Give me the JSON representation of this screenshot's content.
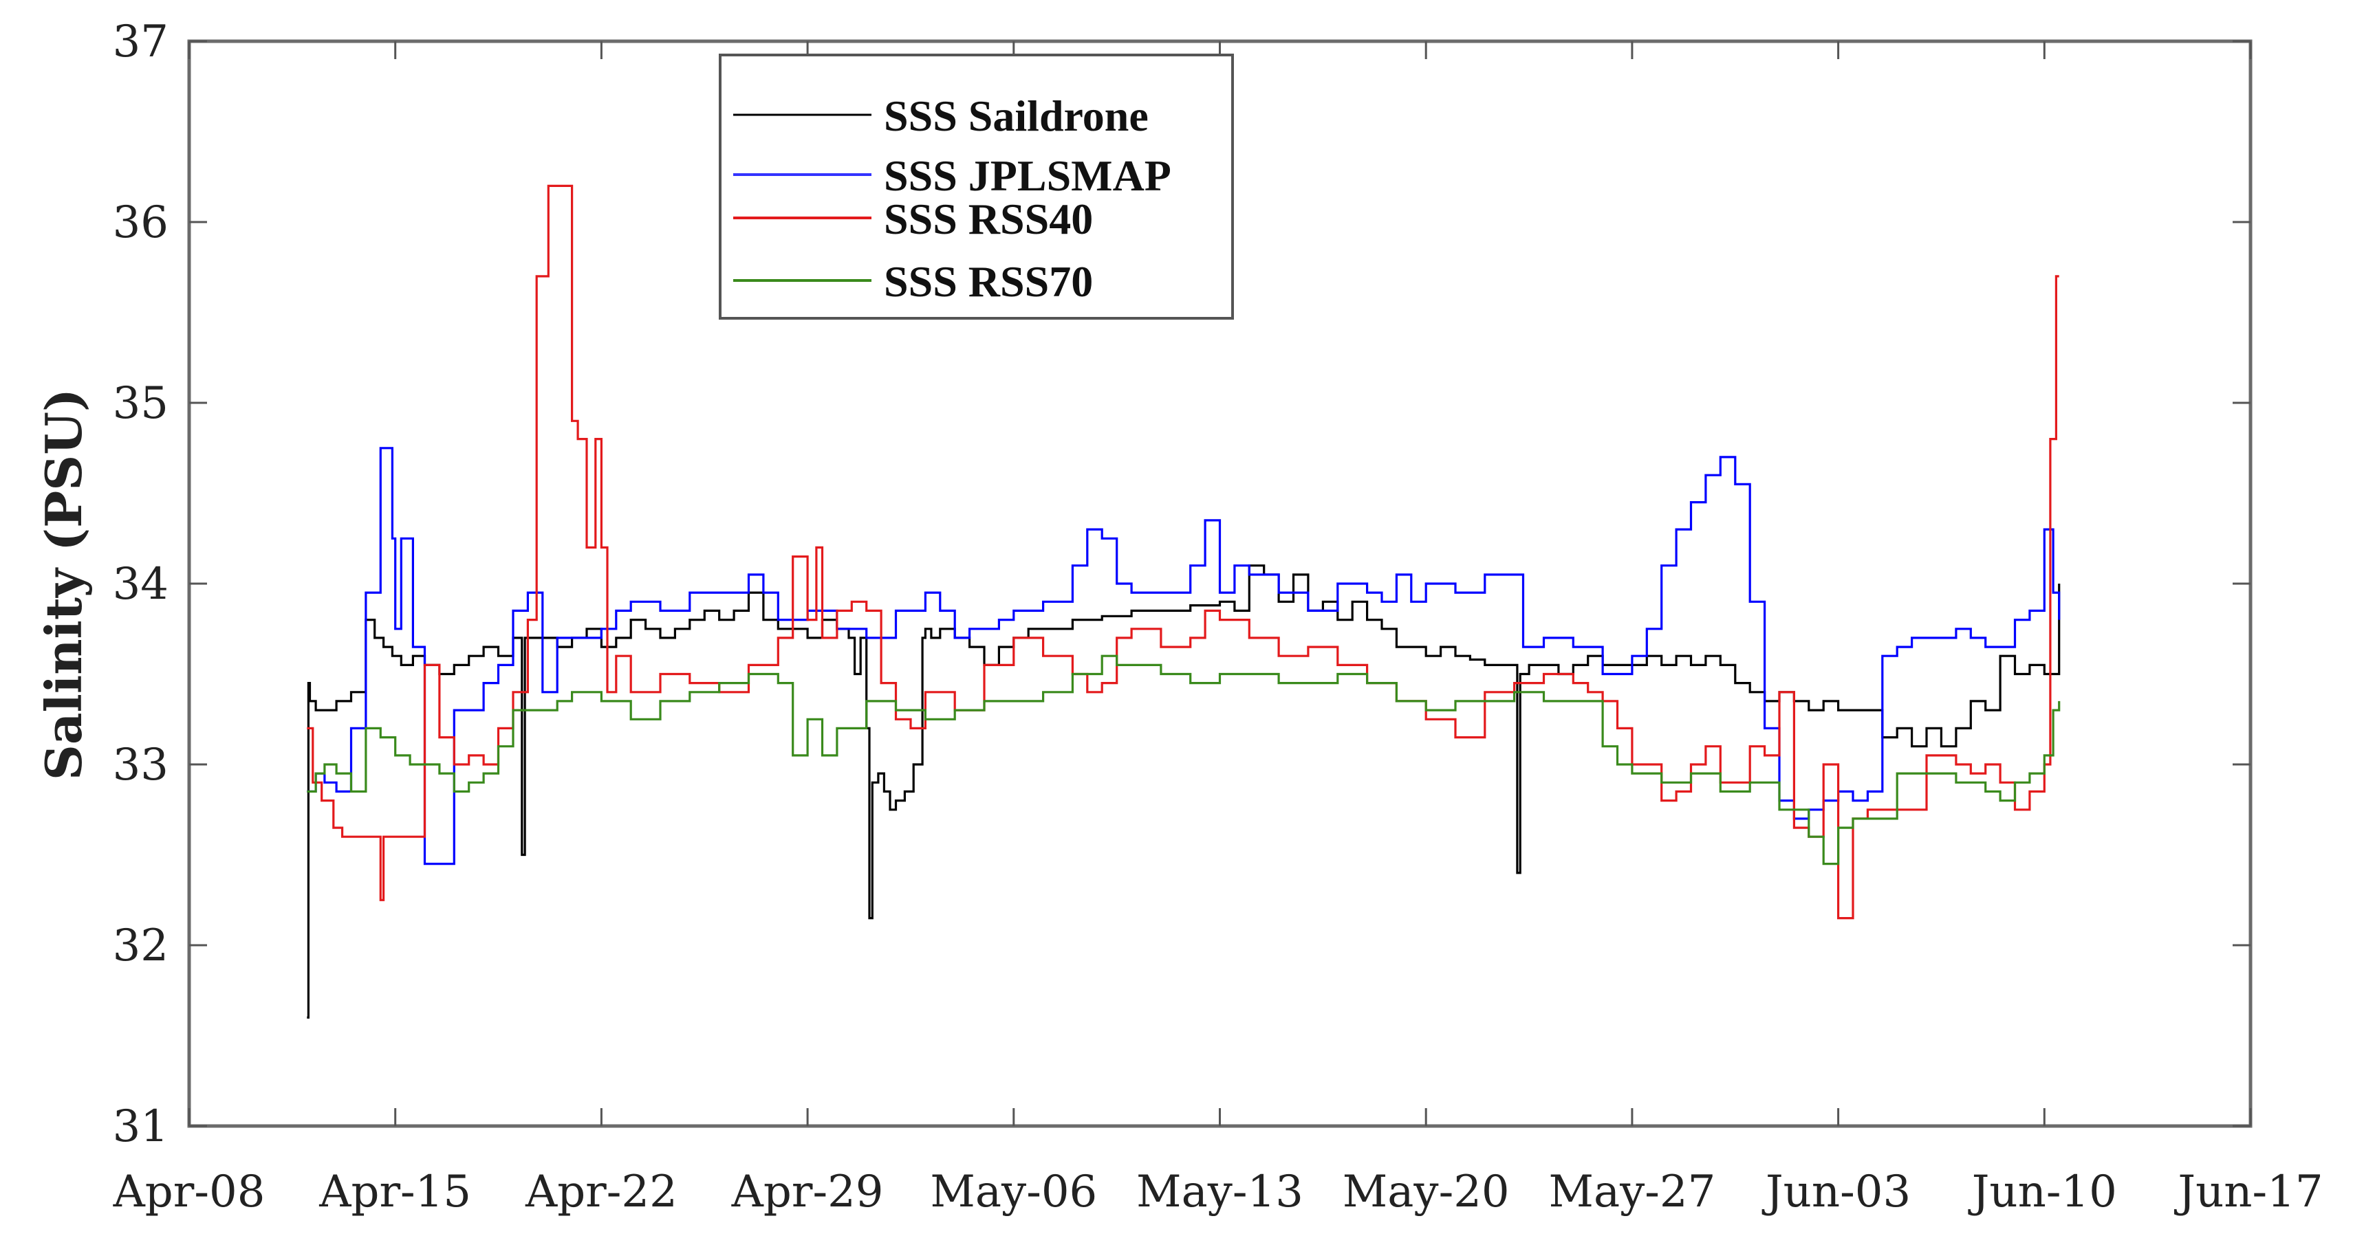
{
  "chart_data": {
    "type": "line",
    "title": "",
    "xlabel": "",
    "ylabel": "Salinity (PSU)",
    "ylim": [
      31,
      37
    ],
    "yticks": [
      31,
      32,
      33,
      34,
      35,
      36,
      37
    ],
    "xlim_days": [
      0,
      70
    ],
    "x_ref_date": "Apr-08",
    "xtick_labels": [
      "Apr-08",
      "Apr-15",
      "Apr-22",
      "Apr-29",
      "May-06",
      "May-13",
      "May-20",
      "May-27",
      "Jun-03",
      "Jun-10",
      "Jun-17"
    ],
    "xtick_days": [
      0,
      7,
      14,
      21,
      28,
      35,
      42,
      49,
      56,
      63,
      70
    ],
    "grid": false,
    "legend_position": "upper-left-center",
    "x_unit": "days since Apr-08",
    "series": [
      {
        "name": "SSS Saildrone",
        "color": "#000000",
        "x": [
          4.0,
          4.05,
          4.1,
          4.3,
          4.6,
          5.0,
          5.5,
          6.0,
          6.3,
          6.6,
          6.9,
          7.2,
          7.6,
          8.0,
          8.5,
          9.0,
          9.5,
          10.0,
          10.5,
          11.0,
          11.3,
          11.4,
          11.5,
          11.7,
          12.0,
          12.5,
          13.0,
          13.5,
          14.0,
          14.5,
          15.0,
          15.5,
          16.0,
          16.5,
          17.0,
          17.5,
          18.0,
          18.5,
          19.0,
          19.5,
          20.0,
          20.5,
          21.0,
          21.5,
          22.0,
          22.4,
          22.6,
          22.8,
          23.0,
          23.1,
          23.2,
          23.4,
          23.6,
          23.8,
          24.0,
          24.3,
          24.6,
          24.9,
          25.0,
          25.2,
          25.5,
          26.0,
          26.5,
          27.0,
          27.5,
          28.0,
          28.5,
          29.0,
          29.5,
          30.0,
          31.0,
          32.0,
          33.0,
          34.0,
          35.0,
          35.5,
          36.0,
          36.5,
          37.0,
          37.5,
          38.0,
          38.5,
          39.0,
          39.5,
          40.0,
          40.5,
          41.0,
          41.5,
          42.0,
          42.5,
          43.0,
          43.5,
          44.0,
          44.5,
          45.0,
          45.1,
          45.2,
          45.5,
          46.0,
          46.5,
          47.0,
          47.5,
          48.0,
          48.5,
          49.0,
          49.5,
          50.0,
          50.5,
          51.0,
          51.5,
          52.0,
          52.5,
          53.0,
          53.5,
          54.0,
          54.5,
          55.0,
          55.5,
          56.0,
          56.5,
          57.0,
          57.5,
          58.0,
          58.5,
          59.0,
          59.5,
          60.0,
          60.5,
          61.0,
          61.5,
          62.0,
          62.5,
          63.0,
          63.5
        ],
        "values": [
          31.6,
          33.45,
          33.35,
          33.3,
          33.3,
          33.35,
          33.4,
          33.8,
          33.7,
          33.65,
          33.6,
          33.55,
          33.6,
          33.55,
          33.5,
          33.55,
          33.6,
          33.65,
          33.6,
          33.7,
          32.5,
          33.7,
          33.7,
          33.7,
          33.7,
          33.65,
          33.7,
          33.75,
          33.65,
          33.7,
          33.8,
          33.75,
          33.7,
          33.75,
          33.8,
          33.85,
          33.8,
          33.85,
          33.95,
          33.8,
          33.75,
          33.75,
          33.7,
          33.8,
          33.75,
          33.7,
          33.5,
          33.7,
          33.2,
          32.15,
          32.9,
          32.95,
          32.85,
          32.75,
          32.8,
          32.85,
          33.0,
          33.7,
          33.75,
          33.7,
          33.75,
          33.7,
          33.65,
          33.55,
          33.65,
          33.7,
          33.75,
          33.75,
          33.75,
          33.8,
          33.82,
          33.85,
          33.85,
          33.88,
          33.9,
          33.85,
          34.1,
          34.05,
          33.9,
          34.05,
          33.85,
          33.9,
          33.8,
          33.9,
          33.8,
          33.75,
          33.65,
          33.65,
          33.6,
          33.65,
          33.6,
          33.58,
          33.55,
          33.55,
          33.55,
          32.4,
          33.5,
          33.55,
          33.55,
          33.5,
          33.55,
          33.6,
          33.55,
          33.55,
          33.55,
          33.6,
          33.55,
          33.6,
          33.55,
          33.6,
          33.55,
          33.45,
          33.4,
          33.35,
          33.4,
          33.35,
          33.3,
          33.35,
          33.3,
          33.3,
          33.3,
          33.15,
          33.2,
          33.1,
          33.2,
          33.1,
          33.2,
          33.35,
          33.3,
          33.6,
          33.5,
          33.55,
          33.5,
          34.0
        ]
      },
      {
        "name": "SSS JPLSMAP",
        "color": "#0000ff",
        "x": [
          4.0,
          4.3,
          4.6,
          5.0,
          5.5,
          6.0,
          6.5,
          6.9,
          7.0,
          7.2,
          7.6,
          8.0,
          8.3,
          9.0,
          10.0,
          10.5,
          11.0,
          11.5,
          12.0,
          12.5,
          13.0,
          14.0,
          14.5,
          15.0,
          16.0,
          17.0,
          18.0,
          19.0,
          19.5,
          20.0,
          21.0,
          22.0,
          23.0,
          24.0,
          25.0,
          25.5,
          26.0,
          26.5,
          27.0,
          27.5,
          28.0,
          29.0,
          30.0,
          30.5,
          31.0,
          31.5,
          32.0,
          33.0,
          34.0,
          34.5,
          35.0,
          35.5,
          36.0,
          37.0,
          38.0,
          39.0,
          40.0,
          40.5,
          41.0,
          41.5,
          42.0,
          43.0,
          44.0,
          45.0,
          45.3,
          46.0,
          47.0,
          48.0,
          49.0,
          49.5,
          50.0,
          50.5,
          51.0,
          51.5,
          52.0,
          52.5,
          53.0,
          53.5,
          54.0,
          54.5,
          55.0,
          55.5,
          56.0,
          56.5,
          57.0,
          57.5,
          58.0,
          58.5,
          59.0,
          59.5,
          60.0,
          60.5,
          61.0,
          61.5,
          62.0,
          62.5,
          63.0,
          63.3,
          63.5
        ],
        "values": [
          32.85,
          32.95,
          32.9,
          32.85,
          33.2,
          33.95,
          34.75,
          34.25,
          33.75,
          34.25,
          33.65,
          32.45,
          32.45,
          33.3,
          33.45,
          33.55,
          33.85,
          33.95,
          33.4,
          33.7,
          33.7,
          33.75,
          33.85,
          33.9,
          33.85,
          33.95,
          33.95,
          34.05,
          33.95,
          33.8,
          33.85,
          33.75,
          33.7,
          33.85,
          33.95,
          33.85,
          33.7,
          33.75,
          33.75,
          33.8,
          33.85,
          33.9,
          34.1,
          34.3,
          34.25,
          34.0,
          33.95,
          33.95,
          34.1,
          34.35,
          33.95,
          34.1,
          34.05,
          33.95,
          33.85,
          34.0,
          33.95,
          33.9,
          34.05,
          33.9,
          34.0,
          33.95,
          34.05,
          34.05,
          33.65,
          33.7,
          33.65,
          33.5,
          33.6,
          33.75,
          34.1,
          34.3,
          34.45,
          34.6,
          34.7,
          34.55,
          33.9,
          33.2,
          32.8,
          32.7,
          32.75,
          32.8,
          32.85,
          32.8,
          32.85,
          33.6,
          33.65,
          33.7,
          33.7,
          33.7,
          33.75,
          33.7,
          33.65,
          33.65,
          33.8,
          33.85,
          34.3,
          33.95,
          33.8
        ]
      },
      {
        "name": "SSS RSS40",
        "color": "#e31a1c",
        "x": [
          4.0,
          4.2,
          4.5,
          4.9,
          5.2,
          6.5,
          6.6,
          8.0,
          8.5,
          9.0,
          9.5,
          10.0,
          10.5,
          11.0,
          11.5,
          11.8,
          12.0,
          12.2,
          13.0,
          13.2,
          13.5,
          13.8,
          14.0,
          14.2,
          14.5,
          15.0,
          16.0,
          17.0,
          18.0,
          19.0,
          20.0,
          20.5,
          21.0,
          21.3,
          21.5,
          22.0,
          22.5,
          23.0,
          23.5,
          24.0,
          24.5,
          25.0,
          26.0,
          27.0,
          28.0,
          29.0,
          30.0,
          30.5,
          31.0,
          31.5,
          32.0,
          33.0,
          34.0,
          34.5,
          35.0,
          36.0,
          37.0,
          38.0,
          39.0,
          40.0,
          41.0,
          42.0,
          43.0,
          44.0,
          45.0,
          46.0,
          47.0,
          47.5,
          48.0,
          48.5,
          49.0,
          50.0,
          50.5,
          51.0,
          51.5,
          52.0,
          53.0,
          53.5,
          54.0,
          54.5,
          55.0,
          55.5,
          56.0,
          56.5,
          57.0,
          58.0,
          58.5,
          59.0,
          60.0,
          60.5,
          61.0,
          61.5,
          62.0,
          62.5,
          63.0,
          63.2,
          63.4,
          63.5
        ],
        "values": [
          33.2,
          32.9,
          32.8,
          32.65,
          32.6,
          32.25,
          32.6,
          33.55,
          33.15,
          33.0,
          33.05,
          33.0,
          33.2,
          33.4,
          33.8,
          35.7,
          35.7,
          36.2,
          34.9,
          34.8,
          34.2,
          34.8,
          34.2,
          33.4,
          33.6,
          33.4,
          33.5,
          33.45,
          33.4,
          33.55,
          33.7,
          34.15,
          33.8,
          34.2,
          33.7,
          33.85,
          33.9,
          33.85,
          33.45,
          33.25,
          33.2,
          33.4,
          33.3,
          33.55,
          33.7,
          33.6,
          33.5,
          33.4,
          33.45,
          33.7,
          33.75,
          33.65,
          33.7,
          33.85,
          33.8,
          33.7,
          33.6,
          33.65,
          33.55,
          33.45,
          33.35,
          33.25,
          33.15,
          33.4,
          33.45,
          33.5,
          33.45,
          33.4,
          33.35,
          33.2,
          33.0,
          32.8,
          32.85,
          33.0,
          33.1,
          32.9,
          33.1,
          33.05,
          33.4,
          32.65,
          32.6,
          33.0,
          32.15,
          32.7,
          32.75,
          32.75,
          32.75,
          33.05,
          33.0,
          32.95,
          33.0,
          32.9,
          32.75,
          32.85,
          33.0,
          34.8,
          35.7,
          35.7
        ]
      },
      {
        "name": "SSS RSS70",
        "color": "#3a8a1c",
        "x": [
          4.0,
          4.3,
          4.6,
          5.0,
          5.5,
          6.0,
          6.5,
          7.0,
          7.5,
          8.0,
          8.5,
          9.0,
          9.5,
          10.0,
          10.5,
          11.0,
          11.5,
          12.0,
          12.5,
          13.0,
          13.5,
          14.0,
          15.0,
          16.0,
          17.0,
          18.0,
          19.0,
          20.0,
          20.5,
          21.0,
          21.5,
          22.0,
          23.0,
          24.0,
          25.0,
          26.0,
          27.0,
          28.0,
          29.0,
          30.0,
          31.0,
          31.5,
          32.0,
          33.0,
          34.0,
          35.0,
          36.0,
          37.0,
          38.0,
          39.0,
          40.0,
          41.0,
          42.0,
          43.0,
          44.0,
          45.0,
          46.0,
          47.0,
          48.0,
          48.5,
          49.0,
          49.5,
          50.0,
          51.0,
          52.0,
          53.0,
          54.0,
          55.0,
          55.5,
          56.0,
          56.5,
          57.0,
          58.0,
          59.0,
          60.0,
          61.0,
          61.5,
          62.0,
          62.5,
          63.0,
          63.3,
          63.5
        ],
        "values": [
          32.85,
          32.95,
          33.0,
          32.95,
          32.85,
          33.2,
          33.15,
          33.05,
          33.0,
          33.0,
          32.95,
          32.85,
          32.9,
          32.95,
          33.1,
          33.3,
          33.3,
          33.3,
          33.35,
          33.4,
          33.4,
          33.35,
          33.25,
          33.35,
          33.4,
          33.45,
          33.5,
          33.45,
          33.05,
          33.25,
          33.05,
          33.2,
          33.35,
          33.3,
          33.25,
          33.3,
          33.35,
          33.35,
          33.4,
          33.5,
          33.6,
          33.55,
          33.55,
          33.5,
          33.45,
          33.5,
          33.5,
          33.45,
          33.45,
          33.5,
          33.45,
          33.35,
          33.3,
          33.35,
          33.35,
          33.4,
          33.35,
          33.35,
          33.1,
          33.0,
          32.95,
          32.95,
          32.9,
          32.95,
          32.85,
          32.9,
          32.75,
          32.6,
          32.45,
          32.65,
          32.7,
          32.7,
          32.95,
          32.95,
          32.9,
          32.85,
          32.8,
          32.9,
          32.95,
          33.05,
          33.3,
          33.35
        ]
      }
    ]
  },
  "legend": {
    "items": [
      {
        "label": "SSS Saildrone",
        "color": "#000000"
      },
      {
        "label": "SSS JPLSMAP",
        "color": "#0000ff"
      },
      {
        "label": "SSS RSS40",
        "color": "#e31a1c"
      },
      {
        "label": "SSS RSS70",
        "color": "#3a8a1c"
      }
    ]
  },
  "axes": {
    "ylabel": "Salinity (PSU)"
  }
}
